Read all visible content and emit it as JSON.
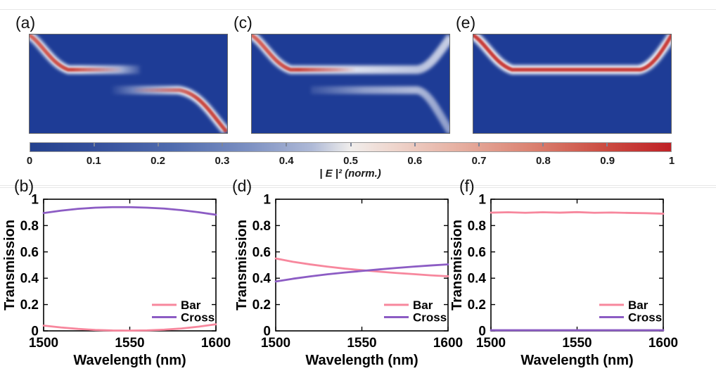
{
  "field_panels": [
    {
      "id": "a",
      "label": "(a)"
    },
    {
      "id": "c",
      "label": "(c)"
    },
    {
      "id": "e",
      "label": "(e)"
    }
  ],
  "field_map_colors": {
    "background_blue": "#1E3C96",
    "core_red": "#C63E37",
    "sheath_white": "#FFFFFF"
  },
  "colorbar": {
    "tick_labels": [
      "0",
      "0.1",
      "0.2",
      "0.3",
      "0.4",
      "0.5",
      "0.6",
      "0.7",
      "0.8",
      "0.9",
      "1"
    ],
    "label": "| E |² (norm.)",
    "color_left": "#24418E",
    "color_mid": "#F0EEEC",
    "color_right": "#BF2126"
  },
  "chart_data": [
    {
      "id": "b",
      "panel_label": "(b)",
      "type": "line",
      "xlabel": "Wavelength (nm)",
      "ylabel": "Transmission",
      "xlim": [
        1500,
        1600
      ],
      "ylim": [
        0,
        1
      ],
      "xticks": [
        1500,
        1550,
        1600
      ],
      "yticks": [
        0,
        0.2,
        0.4,
        0.6,
        0.8,
        1
      ],
      "ytick_labels": [
        "0",
        "0.2",
        "0.4",
        "0.6",
        "0.8",
        "1"
      ],
      "x": [
        1500,
        1510,
        1520,
        1530,
        1540,
        1550,
        1560,
        1570,
        1580,
        1590,
        1600
      ],
      "series": [
        {
          "name": "Bar",
          "color": "#F7879D",
          "values": [
            0.04,
            0.026,
            0.015,
            0.007,
            0.003,
            0.002,
            0.004,
            0.009,
            0.018,
            0.032,
            0.05
          ]
        },
        {
          "name": "Cross",
          "color": "#8C5CC4",
          "values": [
            0.895,
            0.913,
            0.927,
            0.936,
            0.94,
            0.94,
            0.936,
            0.929,
            0.917,
            0.901,
            0.882
          ]
        }
      ],
      "legend_position": "lower right",
      "grid": false
    },
    {
      "id": "d",
      "panel_label": "(d)",
      "type": "line",
      "xlabel": "Wavelength (nm)",
      "ylabel": "Transmission",
      "xlim": [
        1500,
        1600
      ],
      "ylim": [
        0,
        1
      ],
      "xticks": [
        1500,
        1550,
        1600
      ],
      "yticks": [
        0,
        0.2,
        0.4,
        0.6,
        0.8,
        1
      ],
      "ytick_labels": [
        "0",
        "0.2",
        "0.4",
        "0.6",
        "0.8",
        "1"
      ],
      "x": [
        1500,
        1510,
        1520,
        1530,
        1540,
        1550,
        1560,
        1570,
        1580,
        1590,
        1600
      ],
      "series": [
        {
          "name": "Bar",
          "color": "#F7879D",
          "values": [
            0.55,
            0.525,
            0.505,
            0.488,
            0.473,
            0.461,
            0.45,
            0.44,
            0.431,
            0.422,
            0.415
          ]
        },
        {
          "name": "Cross",
          "color": "#8C5CC4",
          "values": [
            0.375,
            0.396,
            0.414,
            0.43,
            0.443,
            0.455,
            0.467,
            0.478,
            0.488,
            0.497,
            0.505
          ]
        }
      ],
      "legend_position": "lower right",
      "grid": false
    },
    {
      "id": "f",
      "panel_label": "(f)",
      "type": "line",
      "xlabel": "Wavelength (nm)",
      "ylabel": "Transmission",
      "xlim": [
        1500,
        1600
      ],
      "ylim": [
        0,
        1
      ],
      "xticks": [
        1500,
        1550,
        1600
      ],
      "yticks": [
        0,
        0.2,
        0.4,
        0.6,
        0.8,
        1
      ],
      "ytick_labels": [
        "0",
        "0.2",
        "0.4",
        "0.6",
        "0.8",
        "1"
      ],
      "x": [
        1500,
        1510,
        1520,
        1530,
        1540,
        1550,
        1560,
        1570,
        1580,
        1590,
        1600
      ],
      "series": [
        {
          "name": "Bar",
          "color": "#F7879D",
          "values": [
            0.898,
            0.901,
            0.897,
            0.901,
            0.898,
            0.902,
            0.897,
            0.899,
            0.896,
            0.894,
            0.89
          ]
        },
        {
          "name": "Cross",
          "color": "#8C5CC4",
          "values": [
            0.005,
            0.005,
            0.005,
            0.005,
            0.005,
            0.005,
            0.005,
            0.005,
            0.005,
            0.005,
            0.005
          ]
        }
      ],
      "legend_position": "lower right",
      "grid": false
    }
  ]
}
